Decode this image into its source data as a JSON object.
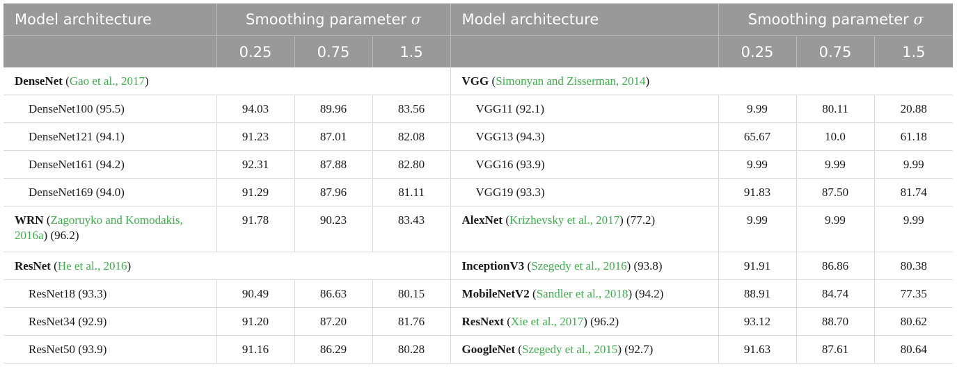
{
  "header": {
    "model_architecture": "Model architecture",
    "smoothing_prefix": "Smoothing parameter ",
    "smoothing_symbol": "σ",
    "sigmas": [
      "0.25",
      "0.75",
      "1.5"
    ]
  },
  "left": {
    "densenet": {
      "name": "DenseNet",
      "pre": " (",
      "cite": "Gao et al., 2017",
      "post": ")"
    },
    "densenet_rows": [
      {
        "label": "DenseNet100 (95.5)",
        "v": [
          "94.03",
          "89.96",
          "83.56"
        ]
      },
      {
        "label": "DenseNet121 (94.1)",
        "v": [
          "91.23",
          "87.01",
          "82.08"
        ]
      },
      {
        "label": "DenseNet161 (94.2)",
        "v": [
          "92.31",
          "87.88",
          "82.80"
        ]
      },
      {
        "label": "DenseNet169 (94.0)",
        "v": [
          "91.29",
          "87.96",
          "81.11"
        ]
      }
    ],
    "wrn": {
      "name": "WRN",
      "pre": " (",
      "cite1": "Zagoruyko and Komodakis,",
      "cite2": "2016a",
      "post": ") (96.2)",
      "v": [
        "91.78",
        "90.23",
        "83.43"
      ]
    },
    "resnet": {
      "name": "ResNet",
      "pre": " (",
      "cite": "He et al., 2016",
      "post": ")"
    },
    "resnet_rows": [
      {
        "label": "ResNet18 (93.3)",
        "v": [
          "90.49",
          "86.63",
          "80.15"
        ]
      },
      {
        "label": "ResNet34 (92.9)",
        "v": [
          "91.20",
          "87.20",
          "81.76"
        ]
      },
      {
        "label": "ResNet50 (93.9)",
        "v": [
          "91.16",
          "86.29",
          "80.28"
        ]
      }
    ]
  },
  "right": {
    "vgg": {
      "name": "VGG",
      "pre": " (",
      "cite": "Simonyan and Zisserman, 2014",
      "post": ")"
    },
    "vgg_rows": [
      {
        "label": "VGG11 (92.1)",
        "v": [
          "9.99",
          "80.11",
          "20.88"
        ]
      },
      {
        "label": "VGG13 (94.3)",
        "v": [
          "65.67",
          "10.0",
          "61.18"
        ]
      },
      {
        "label": "VGG16 (93.9)",
        "v": [
          "9.99",
          "9.99",
          "9.99"
        ]
      },
      {
        "label": "VGG19 (93.3)",
        "v": [
          "91.83",
          "87.50",
          "81.74"
        ]
      }
    ],
    "alexnet": {
      "name": "AlexNet",
      "pre": " (",
      "cite": "Krizhevsky et al., 2017",
      "post": ") (77.2)",
      "v": [
        "9.99",
        "9.99",
        "9.99"
      ]
    },
    "models": [
      {
        "name": "InceptionV3",
        "pre": " (",
        "cite": "Szegedy et al., 2016",
        "post": ") (93.8)",
        "v": [
          "91.91",
          "86.86",
          "80.38"
        ]
      },
      {
        "name": "MobileNetV2",
        "pre": " (",
        "cite": "Sandler et al., 2018",
        "post": ") (94.2)",
        "v": [
          "88.91",
          "84.74",
          "77.35"
        ]
      },
      {
        "name": "ResNext",
        "pre": " (",
        "cite": "Xie et al., 2017",
        "post": ") (96.2)",
        "v": [
          "93.12",
          "88.70",
          "80.62"
        ]
      },
      {
        "name": "GoogleNet",
        "pre": " (",
        "cite": "Szegedy et al., 2015",
        "post": ") (92.7)",
        "v": [
          "91.63",
          "87.61",
          "80.64"
        ]
      }
    ]
  },
  "colors": {
    "header_bg": "#999999",
    "header_text": "#ffffff",
    "citation": "#3fad4d"
  }
}
